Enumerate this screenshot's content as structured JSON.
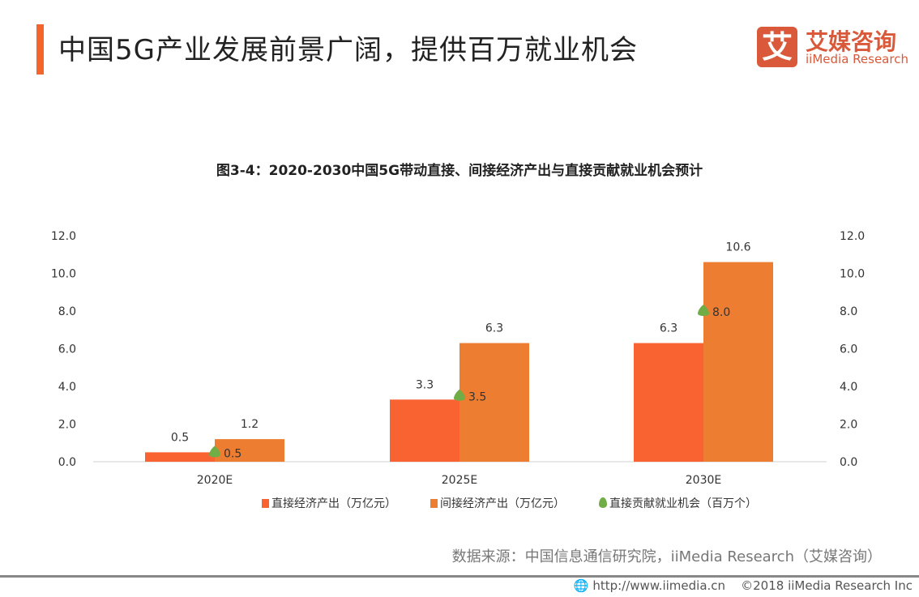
{
  "header": {
    "title": "中国5G产业发展前景广阔，提供百万就业机会",
    "logo_mark": "艾",
    "logo_cn": "艾媒咨询",
    "logo_en": "iiMedia Research"
  },
  "colors": {
    "accent": "#F4652E",
    "direct": "#F96332",
    "indirect": "#ED7D31",
    "jobs": "#70AD47"
  },
  "chart_data": {
    "type": "bar",
    "title": "图3-4：2020-2030中国5G带动直接、间接经济产出与直接贡献就业机会预计",
    "categories": [
      "2020E",
      "2025E",
      "2030E"
    ],
    "series": [
      {
        "name": "直接经济产出（万亿元）",
        "type": "bar",
        "values": [
          0.5,
          3.3,
          6.3
        ]
      },
      {
        "name": "间接经济产出（万亿元）",
        "type": "bar",
        "values": [
          1.2,
          6.3,
          10.6
        ]
      },
      {
        "name": "直接贡献就业机会（百万个）",
        "type": "marker",
        "values": [
          0.5,
          3.5,
          8.0
        ]
      }
    ],
    "ylim": [
      0,
      12
    ],
    "y2lim": [
      0,
      12
    ],
    "yticks": [
      "0.0",
      "2.0",
      "4.0",
      "6.0",
      "8.0",
      "10.0",
      "12.0"
    ],
    "grid": false,
    "legend": "bottom"
  },
  "source": "数据来源：中国信息通信研究院，iiMedia Research（艾媒咨询）",
  "footer": {
    "url": "http://www.iimedia.cn",
    "copyright": "©2018  iiMedia Research  Inc"
  }
}
